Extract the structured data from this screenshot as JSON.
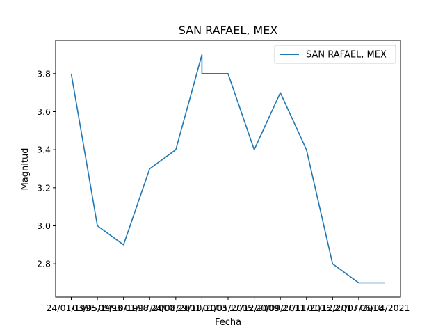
{
  "chart_data": {
    "type": "line",
    "title": "SAN RAFAEL, MEX",
    "xlabel": "Fecha",
    "ylabel": "Magnitud",
    "legend_position": "top-right",
    "grid": false,
    "color": "#1f77b4",
    "ylim": [
      2.625,
      3.975
    ],
    "yticks": [
      2.8,
      3.0,
      3.2,
      3.4,
      3.6,
      3.8
    ],
    "categories": [
      "24/01/1995",
      "03/05/1998",
      "09/10/1998",
      "01/07/2000",
      "24/08/2001",
      "29/10/2003",
      "01/05/2005",
      "17/12/2009",
      "20/09/2011",
      "27/11/2015",
      "01/12/2017",
      "27/07/2018",
      "06/04/2021"
    ],
    "series": [
      {
        "name": "SAN RAFAEL, MEX",
        "x": [
          0,
          1,
          2,
          3,
          4,
          5,
          5,
          6,
          7,
          8,
          9,
          10,
          11,
          12
        ],
        "values": [
          3.8,
          3.0,
          2.9,
          3.3,
          3.4,
          3.9,
          3.8,
          3.8,
          3.4,
          3.7,
          3.4,
          2.8,
          2.7,
          2.7
        ]
      }
    ]
  }
}
